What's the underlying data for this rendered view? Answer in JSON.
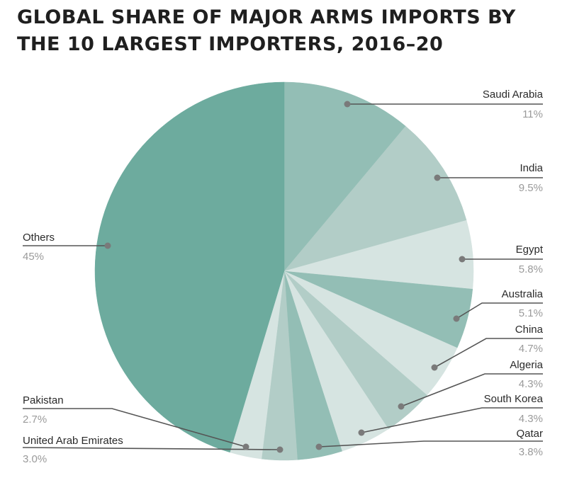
{
  "title_line1": "GLOBAL SHARE OF MAJOR ARMS IMPORTS BY",
  "title_line2": "THE 10 LARGEST IMPORTERS, 2016–20",
  "chart_data": {
    "type": "pie",
    "title": "GLOBAL SHARE OF MAJOR ARMS IMPORTS BY THE 10 LARGEST IMPORTERS, 2016–20",
    "start": "12 o'clock",
    "direction": "clockwise",
    "slices": [
      {
        "label": "Saudi Arabia",
        "value": 11,
        "display": "11%",
        "color": "#93beb5"
      },
      {
        "label": "India",
        "value": 9.5,
        "display": "9.5%",
        "color": "#b2cdc7"
      },
      {
        "label": "Egypt",
        "value": 5.8,
        "display": "5.8%",
        "color": "#d6e4e1"
      },
      {
        "label": "Australia",
        "value": 5.1,
        "display": "5.1%",
        "color": "#93beb5"
      },
      {
        "label": "China",
        "value": 4.7,
        "display": "4.7%",
        "color": "#d6e4e1"
      },
      {
        "label": "Algeria",
        "value": 4.3,
        "display": "4.3%",
        "color": "#b2cdc7"
      },
      {
        "label": "South Korea",
        "value": 4.3,
        "display": "4.3%",
        "color": "#d6e4e1"
      },
      {
        "label": "Qatar",
        "value": 3.8,
        "display": "3.8%",
        "color": "#93beb5"
      },
      {
        "label": "United Arab Emirates",
        "value": 3.0,
        "display": "3.0%",
        "color": "#b2cdc7"
      },
      {
        "label": "Pakistan",
        "value": 2.7,
        "display": "2.7%",
        "color": "#d6e4e1"
      },
      {
        "label": "Others",
        "value": 45,
        "display": "45%",
        "color": "#6dab9e"
      }
    ],
    "leader_line_color": "#555555",
    "dot_color": "#7a7a7a"
  }
}
